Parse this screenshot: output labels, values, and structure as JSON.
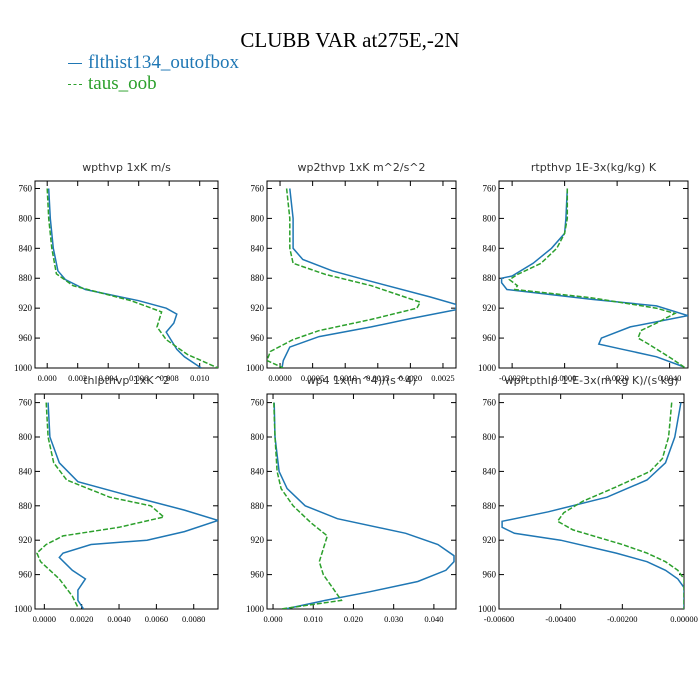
{
  "title": "CLUBB VAR at275E,-2N",
  "legend": [
    {
      "label": "flthist134_outofbox",
      "color": "#1f77b4",
      "style": "solid"
    },
    {
      "label": "taus_oob",
      "color": "#2ca02c",
      "style": "dashed"
    }
  ],
  "chart_data": [
    {
      "type": "line",
      "title": "wpthvp  1xK m/s",
      "ylim": [
        1000,
        750
      ],
      "yticks": [
        760,
        800,
        840,
        880,
        920,
        960,
        1000
      ],
      "ytick_labels": [
        "760",
        "800",
        "840",
        "880",
        "920",
        "960",
        "1000"
      ],
      "xlim": [
        -0.0008,
        0.0112
      ],
      "xticks": [
        0.0,
        0.002,
        0.004,
        0.006,
        0.008,
        0.01
      ],
      "xtick_labels": [
        "0.000",
        "0.002",
        "0.004",
        "0.006",
        "0.008",
        "0.010"
      ],
      "series": [
        {
          "name": "flthist134_outofbox",
          "points": [
            [
              0.0001,
              760
            ],
            [
              0.0002,
              800
            ],
            [
              0.0004,
              840
            ],
            [
              0.0007,
              870
            ],
            [
              0.0012,
              882
            ],
            [
              0.0025,
              895
            ],
            [
              0.006,
              910
            ],
            [
              0.0078,
              920
            ],
            [
              0.0085,
              928
            ],
            [
              0.0083,
              940
            ],
            [
              0.0078,
              952
            ],
            [
              0.0085,
              975
            ],
            [
              0.009,
              985
            ],
            [
              0.0101,
              1000
            ]
          ]
        },
        {
          "name": "taus_oob",
          "points": [
            [
              0.0,
              760
            ],
            [
              0.0001,
              800
            ],
            [
              0.0003,
              840
            ],
            [
              0.0006,
              874
            ],
            [
              0.0017,
              890
            ],
            [
              0.0055,
              910
            ],
            [
              0.0075,
              925
            ],
            [
              0.0072,
              945
            ],
            [
              0.0078,
              962
            ],
            [
              0.0092,
              982
            ],
            [
              0.0112,
              1000
            ]
          ]
        }
      ]
    },
    {
      "type": "line",
      "title": "wp2thvp  1xK m^2/s^2",
      "ylim": [
        1000,
        750
      ],
      "yticks": [
        760,
        800,
        840,
        880,
        920,
        960,
        1000
      ],
      "ytick_labels": [
        "760",
        "800",
        "840",
        "880",
        "920",
        "960",
        "1000"
      ],
      "xlim": [
        -0.0002,
        0.0027
      ],
      "xticks": [
        0.0,
        0.0005,
        0.001,
        0.0015,
        0.002,
        0.0025
      ],
      "xtick_labels": [
        "0.0000",
        "0.0005",
        "0.0010",
        "0.0015",
        "0.0020",
        "0.0025"
      ],
      "series": [
        {
          "name": "flthist134_outofbox",
          "points": [
            [
              0.00015,
              760
            ],
            [
              0.0002,
              800
            ],
            [
              0.0002,
              840
            ],
            [
              0.00035,
              855
            ],
            [
              0.0008,
              870
            ],
            [
              0.0013,
              882
            ],
            [
              0.0023,
              905
            ],
            [
              0.0027,
              915
            ],
            [
              0.0027,
              922
            ],
            [
              0.002,
              934
            ],
            [
              0.0014,
              945
            ],
            [
              0.0006,
              958
            ],
            [
              0.00015,
              972
            ],
            [
              5e-05,
              990
            ],
            [
              3e-05,
              1000
            ]
          ]
        },
        {
          "name": "taus_oob",
          "points": [
            [
              0.0001,
              760
            ],
            [
              0.00015,
              800
            ],
            [
              0.00015,
              840
            ],
            [
              0.0002,
              860
            ],
            [
              0.0007,
              875
            ],
            [
              0.0014,
              890
            ],
            [
              0.00215,
              912
            ],
            [
              0.0021,
              920
            ],
            [
              0.0014,
              935
            ],
            [
              0.0006,
              950
            ],
            [
              0.0002,
              962
            ],
            [
              -0.00015,
              978
            ],
            [
              -0.0002,
              990
            ],
            [
              5e-05,
              1000
            ]
          ]
        }
      ]
    },
    {
      "type": "line",
      "title": "rtpthvp  1E-3x(kg/kg) K",
      "ylim": [
        1000,
        750
      ],
      "yticks": [
        760,
        800,
        840,
        880,
        920,
        960,
        1000
      ],
      "ytick_labels": [
        "760",
        "800",
        "840",
        "880",
        "920",
        "960",
        "1000"
      ],
      "xlim": [
        -0.0025,
        0.0047
      ],
      "xticks": [
        -0.002,
        0.0,
        0.002,
        0.004
      ],
      "xtick_labels": [
        "-0.0020",
        "0.0000",
        "0.0020",
        "0.0040"
      ],
      "series": [
        {
          "name": "flthist134_outofbox",
          "points": [
            [
              0.0001,
              760
            ],
            [
              5e-05,
              800
            ],
            [
              0.0,
              820
            ],
            [
              -0.0005,
              840
            ],
            [
              -0.0012,
              860
            ],
            [
              -0.002,
              877
            ],
            [
              -0.0024,
              880
            ],
            [
              -0.0024,
              886
            ],
            [
              -0.0022,
              895
            ],
            [
              0.001,
              908
            ],
            [
              0.0035,
              917
            ],
            [
              0.0047,
              930
            ],
            [
              0.0025,
              945
            ],
            [
              0.0014,
              960
            ],
            [
              0.0013,
              968
            ],
            [
              0.0022,
              975
            ],
            [
              0.0035,
              985
            ],
            [
              0.0045,
              998
            ]
          ]
        },
        {
          "name": "taus_oob",
          "points": [
            [
              0.0001,
              760
            ],
            [
              0.0001,
              800
            ],
            [
              0.0,
              820
            ],
            [
              -0.0003,
              840
            ],
            [
              -0.0009,
              860
            ],
            [
              -0.0018,
              875
            ],
            [
              -0.0021,
              882
            ],
            [
              -0.0018,
              890
            ],
            [
              -0.0019,
              895
            ],
            [
              0.001,
              906
            ],
            [
              0.0035,
              920
            ],
            [
              0.0042,
              927
            ],
            [
              0.0035,
              940
            ],
            [
              0.0029,
              950
            ],
            [
              0.0028,
              960
            ],
            [
              0.0032,
              968
            ],
            [
              0.0041,
              988
            ],
            [
              0.0046,
              1000
            ]
          ]
        }
      ]
    },
    {
      "type": "line",
      "title": "thlpthvp  1xK^2",
      "ylim": [
        1000,
        750
      ],
      "yticks": [
        760,
        800,
        840,
        880,
        920,
        960,
        1000
      ],
      "ytick_labels": [
        "760",
        "800",
        "840",
        "880",
        "920",
        "960",
        "1000"
      ],
      "xlim": [
        -0.0005,
        0.0093
      ],
      "xticks": [
        0.0,
        0.002,
        0.004,
        0.006,
        0.008
      ],
      "xtick_labels": [
        "0.0000",
        "0.0020",
        "0.0040",
        "0.0060",
        "0.0080"
      ],
      "series": [
        {
          "name": "flthist134_outofbox",
          "points": [
            [
              0.0002,
              760
            ],
            [
              0.0003,
              800
            ],
            [
              0.0008,
              830
            ],
            [
              0.0018,
              852
            ],
            [
              0.0045,
              868
            ],
            [
              0.0075,
              885
            ],
            [
              0.0093,
              897
            ],
            [
              0.0075,
              910
            ],
            [
              0.0055,
              920
            ],
            [
              0.0025,
              925
            ],
            [
              0.001,
              935
            ],
            [
              0.0008,
              940
            ],
            [
              0.0015,
              955
            ],
            [
              0.0022,
              965
            ],
            [
              0.0018,
              978
            ],
            [
              0.0018,
              990
            ],
            [
              0.0021,
              1000
            ]
          ]
        },
        {
          "name": "taus_oob",
          "points": [
            [
              0.0001,
              760
            ],
            [
              0.0002,
              800
            ],
            [
              0.0005,
              830
            ],
            [
              0.0012,
              850
            ],
            [
              0.0035,
              870
            ],
            [
              0.0057,
              880
            ],
            [
              0.0064,
              893
            ],
            [
              0.004,
              905
            ],
            [
              0.001,
              915
            ],
            [
              0.0001,
              925
            ],
            [
              -0.0004,
              935
            ],
            [
              -0.0002,
              945
            ],
            [
              0.0008,
              965
            ],
            [
              0.0015,
              985
            ],
            [
              0.0018,
              998
            ]
          ]
        }
      ]
    },
    {
      "type": "line",
      "title": "wp4  1x(m^4)/(s^4)",
      "ylim": [
        1000,
        750
      ],
      "yticks": [
        760,
        800,
        840,
        880,
        920,
        960,
        1000
      ],
      "ytick_labels": [
        "760",
        "800",
        "840",
        "880",
        "920",
        "960",
        "1000"
      ],
      "xlim": [
        -0.0015,
        0.0455
      ],
      "xticks": [
        0.0,
        0.01,
        0.02,
        0.03,
        0.04
      ],
      "xtick_labels": [
        "0.000",
        "0.010",
        "0.020",
        "0.030",
        "0.040"
      ],
      "series": [
        {
          "name": "flthist134_outofbox",
          "points": [
            [
              0.0003,
              760
            ],
            [
              0.0005,
              800
            ],
            [
              0.0015,
              840
            ],
            [
              0.0035,
              860
            ],
            [
              0.008,
              880
            ],
            [
              0.016,
              895
            ],
            [
              0.033,
              912
            ],
            [
              0.041,
              925
            ],
            [
              0.045,
              938
            ],
            [
              0.045,
              945
            ],
            [
              0.043,
              955
            ],
            [
              0.036,
              968
            ],
            [
              0.024,
              980
            ],
            [
              0.013,
              990
            ],
            [
              0.003,
              1000
            ]
          ]
        },
        {
          "name": "taus_oob",
          "points": [
            [
              0.0002,
              760
            ],
            [
              0.0005,
              800
            ],
            [
              0.001,
              840
            ],
            [
              0.002,
              860
            ],
            [
              0.005,
              880
            ],
            [
              0.0095,
              900
            ],
            [
              0.0135,
              915
            ],
            [
              0.0125,
              930
            ],
            [
              0.0115,
              945
            ],
            [
              0.0125,
              960
            ],
            [
              0.0155,
              980
            ],
            [
              0.017,
              990
            ],
            [
              0.005,
              998
            ],
            [
              0.002,
              1000
            ]
          ]
        }
      ]
    },
    {
      "type": "line",
      "title": "wprtpthlp  1-E-3x(m kg K)/(s kg)",
      "ylim": [
        1000,
        750
      ],
      "yticks": [
        760,
        800,
        840,
        880,
        920,
        960,
        1000
      ],
      "ytick_labels": [
        "760",
        "800",
        "840",
        "880",
        "920",
        "960",
        "1000"
      ],
      "xlim": [
        -0.006,
        0.0
      ],
      "xticks": [
        -0.006,
        -0.004,
        -0.002,
        0.0
      ],
      "xtick_labels": [
        "-0.00600",
        "-0.00400",
        "-0.00200",
        "0.00000"
      ],
      "series": [
        {
          "name": "flthist134_outofbox",
          "points": [
            [
              -0.0001,
              760
            ],
            [
              -0.0003,
              800
            ],
            [
              -0.0006,
              830
            ],
            [
              -0.0012,
              850
            ],
            [
              -0.0025,
              870
            ],
            [
              -0.0044,
              887
            ],
            [
              -0.0059,
              898
            ],
            [
              -0.0059,
              905
            ],
            [
              -0.0055,
              912
            ],
            [
              -0.004,
              920
            ],
            [
              -0.0022,
              935
            ],
            [
              -0.0012,
              945
            ],
            [
              -0.0006,
              955
            ],
            [
              -0.0002,
              965
            ],
            [
              0.0,
              975
            ],
            [
              0.0,
              1000
            ]
          ]
        },
        {
          "name": "taus_oob",
          "points": [
            [
              -0.0004,
              760
            ],
            [
              -0.0005,
              800
            ],
            [
              -0.0007,
              825
            ],
            [
              -0.0011,
              840
            ],
            [
              -0.0022,
              858
            ],
            [
              -0.0033,
              875
            ],
            [
              -0.0039,
              888
            ],
            [
              -0.0041,
              898
            ],
            [
              -0.0036,
              908
            ],
            [
              -0.002,
              925
            ],
            [
              -0.0012,
              935
            ],
            [
              -0.0006,
              945
            ],
            [
              -0.0002,
              955
            ],
            [
              0.0,
              965
            ],
            [
              0.0,
              1000
            ]
          ]
        }
      ]
    }
  ]
}
